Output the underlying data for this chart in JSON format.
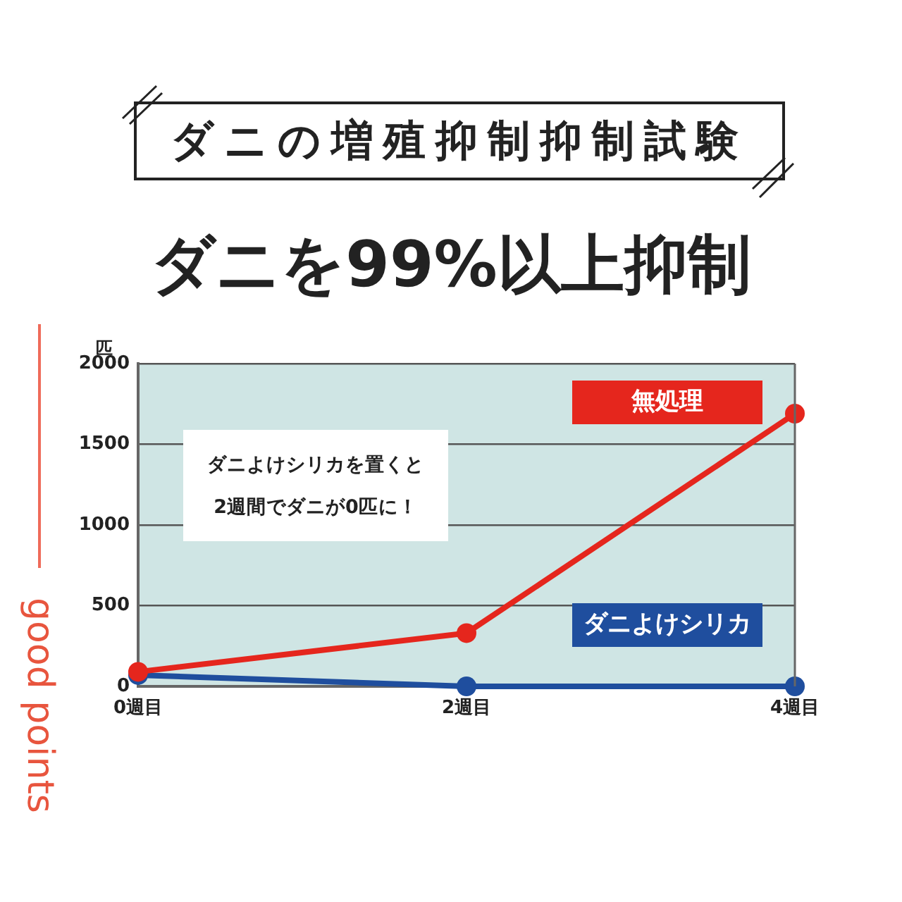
{
  "chart_data": {
    "type": "line",
    "title": "ダニの増殖抑制抑制試験",
    "subtitle": "ダニを99%以上抑制",
    "ylabel": "匹",
    "categories": [
      "0週目",
      "2週目",
      "4週目"
    ],
    "series": [
      {
        "name": "無処理",
        "color": "#e5261d",
        "values": [
          90,
          330,
          1690
        ]
      },
      {
        "name": "ダニよけシリカ",
        "color": "#1f4e9e",
        "values": [
          70,
          0,
          0
        ]
      }
    ],
    "ylim": [
      0,
      2000
    ],
    "yticks": [
      0,
      500,
      1000,
      1500,
      2000
    ],
    "grid": "y",
    "marker": "circle",
    "annotations": [
      "ダニよけシリカを置くと\n2週間でダニが0匹に！",
      "good points"
    ]
  }
}
